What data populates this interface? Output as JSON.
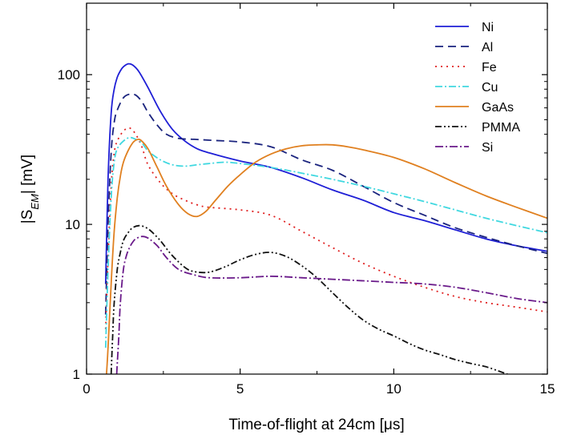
{
  "chart_data": {
    "type": "line",
    "title": "",
    "xlabel": "Time-of-flight at 24cm [μs]",
    "ylabel_parts": {
      "pre": "|S",
      "sub": "EM",
      "post": "| [mV]"
    },
    "xlim": [
      0,
      15
    ],
    "ylim": [
      1,
      300
    ],
    "yscale": "log",
    "x_ticks": [
      0,
      5,
      10,
      15
    ],
    "y_ticks": [
      1,
      10,
      100
    ],
    "x_tick_labels": [
      "0",
      "5",
      "10",
      "15"
    ],
    "y_tick_labels": [
      "1",
      "10",
      "100"
    ],
    "grid": false,
    "legend_position": "top-right",
    "series": [
      {
        "name": "Ni",
        "color": "#1f1fd6",
        "dash": "solid",
        "x": [
          0.62,
          0.7,
          0.8,
          0.9,
          1.0,
          1.1,
          1.2,
          1.35,
          1.5,
          1.7,
          2.0,
          2.4,
          2.8,
          3.2,
          3.6,
          4.0,
          5.0,
          6.0,
          7.0,
          8.0,
          9.0,
          10.0,
          11.0,
          12.0,
          13.0,
          14.0,
          15.0
        ],
        "y": [
          4.0,
          20,
          55,
          80,
          96,
          106,
          113,
          118,
          116,
          105,
          82,
          57,
          43,
          36,
          32,
          30,
          26.5,
          24,
          20.5,
          17,
          14.5,
          12,
          10.6,
          9.2,
          8.0,
          7.2,
          6.6
        ]
      },
      {
        "name": "Al",
        "color": "#1a237e",
        "dash": "10,6",
        "x": [
          0.62,
          0.7,
          0.8,
          0.9,
          1.0,
          1.2,
          1.4,
          1.6,
          1.8,
          2.0,
          2.3,
          2.6,
          3.0,
          3.5,
          4.0,
          5.0,
          6.0,
          7.0,
          8.0,
          9.0,
          10.0,
          11.0,
          12.0,
          13.0,
          14.0,
          15.0
        ],
        "y": [
          2.5,
          10,
          30,
          48,
          58,
          70,
          74,
          73,
          66,
          56,
          46,
          40,
          37.5,
          37,
          36.5,
          35.5,
          33,
          27,
          23,
          18,
          14,
          11.5,
          9.5,
          8.2,
          7.2,
          6.4
        ]
      },
      {
        "name": "Fe",
        "color": "#e02020",
        "dash": "2,5",
        "x": [
          0.62,
          0.7,
          0.8,
          0.9,
          1.0,
          1.2,
          1.4,
          1.6,
          1.8,
          2.0,
          2.4,
          2.8,
          3.2,
          3.6,
          4.0,
          5.0,
          6.0,
          7.0,
          8.0,
          9.0,
          10.0,
          11.0,
          12.0,
          13.0,
          14.0,
          15.0
        ],
        "y": [
          2.0,
          6,
          18,
          30,
          36,
          42,
          44,
          40,
          33,
          25,
          19,
          16,
          14.5,
          13.5,
          13,
          12.5,
          11.5,
          9,
          7,
          5.5,
          4.5,
          3.8,
          3.3,
          3.0,
          2.8,
          2.6
        ]
      },
      {
        "name": "Cu",
        "color": "#40d8e0",
        "dash": "9,3,2,3",
        "x": [
          0.62,
          0.7,
          0.8,
          0.9,
          1.0,
          1.2,
          1.4,
          1.6,
          1.8,
          2.0,
          2.4,
          2.8,
          3.2,
          3.6,
          4.0,
          4.5,
          5.0,
          6.0,
          7.0,
          8.0,
          9.0,
          10.0,
          11.0,
          12.0,
          13.0,
          14.0,
          15.0
        ],
        "y": [
          1.5,
          5,
          15,
          26,
          32,
          36,
          38,
          37,
          35,
          31,
          27,
          25,
          24.5,
          25,
          25.5,
          26,
          25.5,
          24,
          22,
          20,
          18,
          16,
          14.2,
          12.5,
          11,
          9.8,
          8.8
        ]
      },
      {
        "name": "GaAs",
        "color": "#e08020",
        "dash": "solid",
        "x": [
          0.65,
          0.7,
          0.8,
          0.9,
          1.0,
          1.1,
          1.2,
          1.35,
          1.5,
          1.6,
          1.7,
          1.8,
          2.0,
          2.3,
          2.6,
          3.0,
          3.3,
          3.6,
          3.9,
          4.2,
          4.6,
          5.0,
          5.5,
          6.0,
          6.5,
          7.0,
          7.5,
          8.0,
          8.5,
          9.0,
          10.0,
          11.0,
          12.0,
          13.0,
          14.0,
          15.0
        ],
        "y": [
          1.0,
          1.5,
          4,
          9,
          15,
          21,
          26,
          31,
          35,
          36.5,
          37,
          36,
          32,
          24,
          18,
          13.5,
          11.8,
          11.3,
          12.3,
          14.5,
          18,
          21.5,
          26,
          29.5,
          32,
          33.5,
          34,
          34,
          33,
          31.5,
          28,
          23.5,
          19,
          15.5,
          13,
          11
        ]
      },
      {
        "name": "PMMA",
        "color": "#111111",
        "dash": "8,3,2,3,2,3",
        "x": [
          0.8,
          0.85,
          0.9,
          1.0,
          1.1,
          1.2,
          1.35,
          1.5,
          1.7,
          1.9,
          2.1,
          2.4,
          2.7,
          3.0,
          3.3,
          3.6,
          4.0,
          4.5,
          5.0,
          5.5,
          6.0,
          6.5,
          7.0,
          7.5,
          8.0,
          8.5,
          9.0,
          9.5,
          10.0,
          10.5,
          11.0,
          11.5,
          12.0,
          12.5,
          13.0,
          13.4,
          13.7
        ],
        "y": [
          1.0,
          1.8,
          3,
          5,
          6.5,
          7.8,
          8.8,
          9.5,
          9.8,
          9.6,
          9.0,
          7.8,
          6.5,
          5.6,
          5.0,
          4.8,
          4.8,
          5.2,
          5.8,
          6.3,
          6.5,
          6.1,
          5.3,
          4.4,
          3.5,
          2.8,
          2.3,
          2.0,
          1.8,
          1.6,
          1.45,
          1.35,
          1.25,
          1.18,
          1.12,
          1.05,
          1.0
        ]
      },
      {
        "name": "Si",
        "color": "#6a1a8a",
        "dash": "10,3,2,3",
        "x": [
          0.98,
          1.05,
          1.1,
          1.2,
          1.3,
          1.4,
          1.5,
          1.6,
          1.8,
          2.0,
          2.3,
          2.6,
          3.0,
          3.5,
          4.0,
          5.0,
          6.0,
          7.0,
          8.0,
          9.0,
          10.0,
          11.0,
          12.0,
          13.0,
          14.0,
          15.0
        ],
        "y": [
          1.0,
          1.8,
          3,
          5,
          6.2,
          7.0,
          7.6,
          8.0,
          8.3,
          8.1,
          7.2,
          6.0,
          5.0,
          4.6,
          4.4,
          4.4,
          4.5,
          4.4,
          4.3,
          4.2,
          4.1,
          4.0,
          3.8,
          3.5,
          3.2,
          3.0
        ]
      }
    ]
  }
}
